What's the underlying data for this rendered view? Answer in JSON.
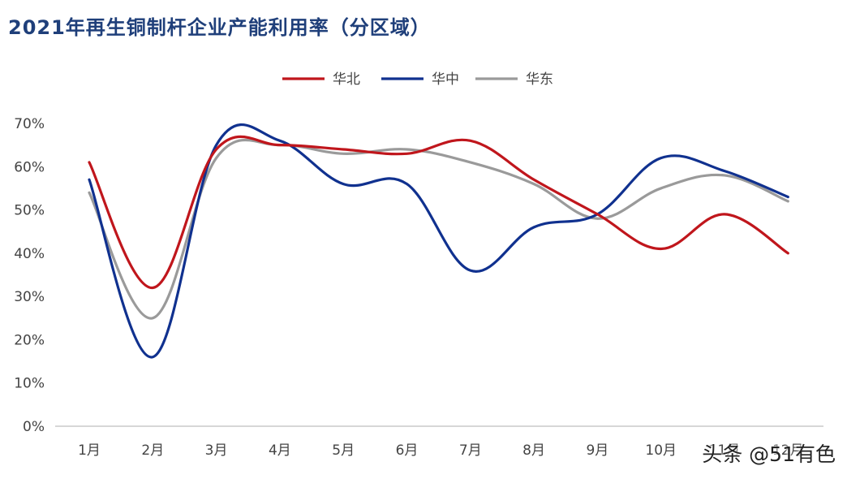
{
  "chart_data": {
    "type": "line",
    "title": "2021年再生铜制杆企业产能利用率（分区域）",
    "categories": [
      "1月",
      "2月",
      "3月",
      "4月",
      "5月",
      "6月",
      "7月",
      "8月",
      "9月",
      "10月",
      "11月",
      "12月"
    ],
    "series": [
      {
        "name": "华北",
        "color": "#c0161c",
        "values": [
          61,
          32,
          64,
          65,
          64,
          63,
          66,
          57,
          49,
          41,
          49,
          40
        ]
      },
      {
        "name": "华中",
        "color": "#10318f",
        "values": [
          57,
          16,
          65,
          66,
          56,
          56,
          36,
          46,
          49,
          62,
          59,
          53
        ]
      },
      {
        "name": "华东",
        "color": "#9a9a9a",
        "values": [
          54,
          25,
          62,
          65,
          63,
          64,
          61,
          56,
          48,
          55,
          58,
          52
        ]
      }
    ],
    "ylim": [
      0,
      70
    ],
    "yticks": [
      "0%",
      "10%",
      "20%",
      "30%",
      "40%",
      "50%",
      "60%",
      "70%"
    ],
    "legend_position": "top-center",
    "grid": false
  },
  "watermark": "头条 @51有色"
}
